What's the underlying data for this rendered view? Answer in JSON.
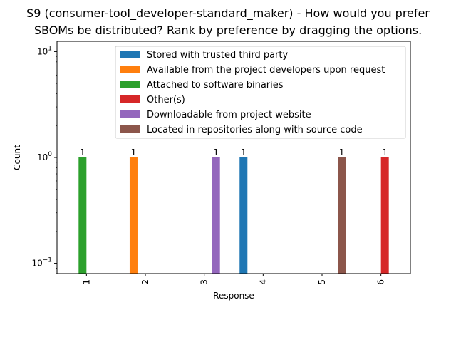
{
  "chart_data": {
    "type": "bar",
    "title_lines": [
      "S9 (consumer-tool_developer-standard_maker) - How would you prefer",
      "SBOMs be distributed? Rank by preference by dragging the options."
    ],
    "xlabel": "Response",
    "ylabel": "Count",
    "y_scale": "log",
    "ylim": [
      0.08,
      12.5
    ],
    "y_ticks": [
      {
        "value": 0.1,
        "base": "10",
        "exp": "−1"
      },
      {
        "value": 1,
        "base": "10",
        "exp": "0"
      },
      {
        "value": 10,
        "base": "10",
        "exp": "1"
      }
    ],
    "categories": [
      "1",
      "2",
      "3",
      "4",
      "5",
      "6"
    ],
    "legend_position": "upper-right",
    "grid": false,
    "series": [
      {
        "name": "Stored with trusted third party",
        "color": "#1f77b4",
        "values": [
          null,
          null,
          null,
          1,
          null,
          null
        ]
      },
      {
        "name": "Available from the project developers upon request",
        "color": "#ff7f0e",
        "values": [
          null,
          1,
          null,
          null,
          null,
          null
        ]
      },
      {
        "name": "Attached to software binaries",
        "color": "#2ca02c",
        "values": [
          1,
          null,
          null,
          null,
          null,
          null
        ]
      },
      {
        "name": "Other(s)",
        "color": "#d62728",
        "values": [
          null,
          null,
          null,
          null,
          null,
          1
        ]
      },
      {
        "name": "Downloadable from project website",
        "color": "#9467bd",
        "values": [
          null,
          null,
          1,
          null,
          null,
          null
        ]
      },
      {
        "name": "Located in repositories along with source code",
        "color": "#8c564b",
        "values": [
          null,
          null,
          null,
          null,
          1,
          null
        ]
      }
    ],
    "data_labels": [
      "1",
      "1",
      "1",
      "1",
      "1",
      "1"
    ]
  }
}
